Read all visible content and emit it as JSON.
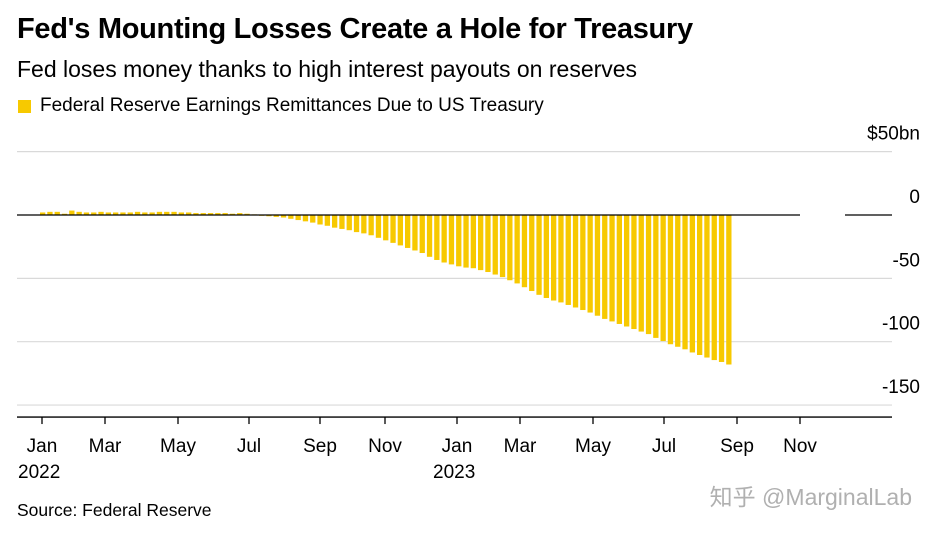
{
  "title": "Fed's Mounting Losses Create a Hole for Treasury",
  "subtitle": "Fed loses money thanks to high interest payouts on reserves",
  "source": "Source: Federal Reserve",
  "watermark": "知乎 @MarginalLab",
  "colors": {
    "bar": "#f7c900",
    "grid": "#d9d9d9",
    "axis": "#000000"
  },
  "chart_data": {
    "type": "bar",
    "legend": [
      "Federal Reserve Earnings Remittances Due to US Treasury"
    ],
    "legend_position": "top-left",
    "unit": "bn",
    "y_ticks": [
      {
        "value": 50,
        "label": "$50bn"
      },
      {
        "value": 0,
        "label": "0"
      },
      {
        "value": -50,
        "label": "-50"
      },
      {
        "value": -100,
        "label": "-100"
      },
      {
        "value": -150,
        "label": "-150"
      }
    ],
    "ylim": [
      -150,
      50
    ],
    "grid": true,
    "x_ticks": [
      {
        "label": "Jan",
        "year": "2022"
      },
      {
        "label": "Mar",
        "year": ""
      },
      {
        "label": "May",
        "year": ""
      },
      {
        "label": "Jul",
        "year": ""
      },
      {
        "label": "Sep",
        "year": ""
      },
      {
        "label": "Nov",
        "year": ""
      },
      {
        "label": "Jan",
        "year": "2023"
      },
      {
        "label": "Mar",
        "year": ""
      },
      {
        "label": "May",
        "year": ""
      },
      {
        "label": "Jul",
        "year": ""
      },
      {
        "label": "Sep",
        "year": ""
      },
      {
        "label": "Nov",
        "year": ""
      }
    ],
    "series": [
      {
        "values": [
          2.0,
          2.5,
          2.5,
          1.0,
          3.5,
          2.5,
          2.0,
          2.0,
          2.5,
          2.0,
          2.0,
          2.0,
          2.0,
          2.5,
          2.0,
          2.0,
          2.5,
          2.5,
          2.5,
          2.0,
          2.0,
          1.5,
          1.5,
          1.5,
          1.5,
          1.5,
          1.0,
          1.5,
          1.0,
          0.5,
          -0.5,
          -1.0,
          -1.5,
          -2.0,
          -3.0,
          -4.0,
          -5.0,
          -6.0,
          -7.5,
          -8.5,
          -10.0,
          -11.0,
          -12.0,
          -13.5,
          -14.5,
          -16.0,
          -18.0,
          -20.0,
          -22.0,
          -24.0,
          -26.0,
          -28.0,
          -30.0,
          -33.0,
          -35.5,
          -37.5,
          -39.0,
          -40.5,
          -41.5,
          -42.0,
          -43.5,
          -45.0,
          -47.0,
          -49.0,
          -51.5,
          -54.0,
          -57.0,
          -60.0,
          -63.0,
          -65.5,
          -67.5,
          -69.0,
          -71.0,
          -73.0,
          -75.0,
          -77.0,
          -79.5,
          -82.0,
          -84.0,
          -86.0,
          -88.0,
          -90.0,
          -92.0,
          -94.0,
          -97.0,
          -99.5,
          -102.0,
          -104.0,
          -106.0,
          -108.5,
          -110.5,
          -112.5,
          -114.5,
          -116.0,
          -118.0
        ]
      }
    ]
  }
}
